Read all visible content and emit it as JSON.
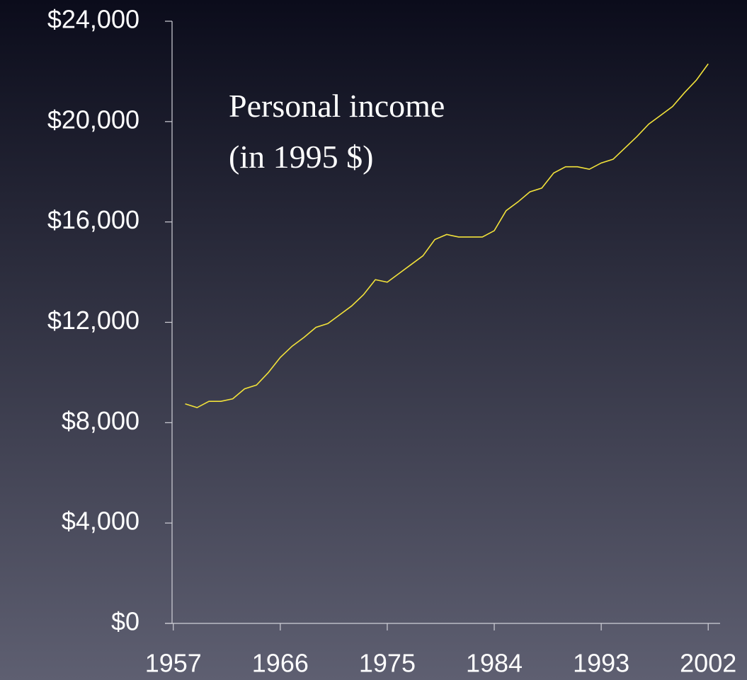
{
  "chart_data": {
    "type": "line",
    "annotation": [
      "Personal income",
      "(in 1995 $)"
    ],
    "x": [
      1958,
      1959,
      1960,
      1961,
      1962,
      1963,
      1964,
      1965,
      1966,
      1967,
      1968,
      1969,
      1970,
      1971,
      1972,
      1973,
      1974,
      1975,
      1976,
      1977,
      1978,
      1979,
      1980,
      1981,
      1982,
      1983,
      1984,
      1985,
      1986,
      1987,
      1988,
      1989,
      1990,
      1991,
      1992,
      1993,
      1994,
      1995,
      1996,
      1997,
      1998,
      1999,
      2000,
      2001,
      2002
    ],
    "series": [
      {
        "color": "#f2e23a",
        "values": [
          8750,
          8600,
          8850,
          8850,
          8950,
          9350,
          9500,
          10000,
          10600,
          11050,
          11400,
          11800,
          11950,
          12300,
          12650,
          13100,
          13700,
          13600,
          13950,
          14300,
          14650,
          15300,
          15500,
          15400,
          15400,
          15400,
          15650,
          16450,
          16800,
          17200,
          17350,
          17950,
          18200,
          18200,
          18100,
          18350,
          18500,
          18950,
          19400,
          19900,
          20250,
          20600,
          21150,
          21650,
          22300
        ]
      }
    ],
    "xlim": [
      1956.3,
      2003.0
    ],
    "xticks": [
      1957,
      1966,
      1975,
      1984,
      1993,
      2002
    ],
    "ylim": [
      0,
      24000
    ],
    "yticks": [
      {
        "value": 0,
        "label": "$0"
      },
      {
        "value": 4000,
        "label": "$4,000"
      },
      {
        "value": 8000,
        "label": "$8,000"
      },
      {
        "value": 12000,
        "label": "$12,000"
      },
      {
        "value": 16000,
        "label": "$16,000"
      },
      {
        "value": 20000,
        "label": "$20,000"
      },
      {
        "value": 24000,
        "label": "$24,000"
      }
    ]
  }
}
